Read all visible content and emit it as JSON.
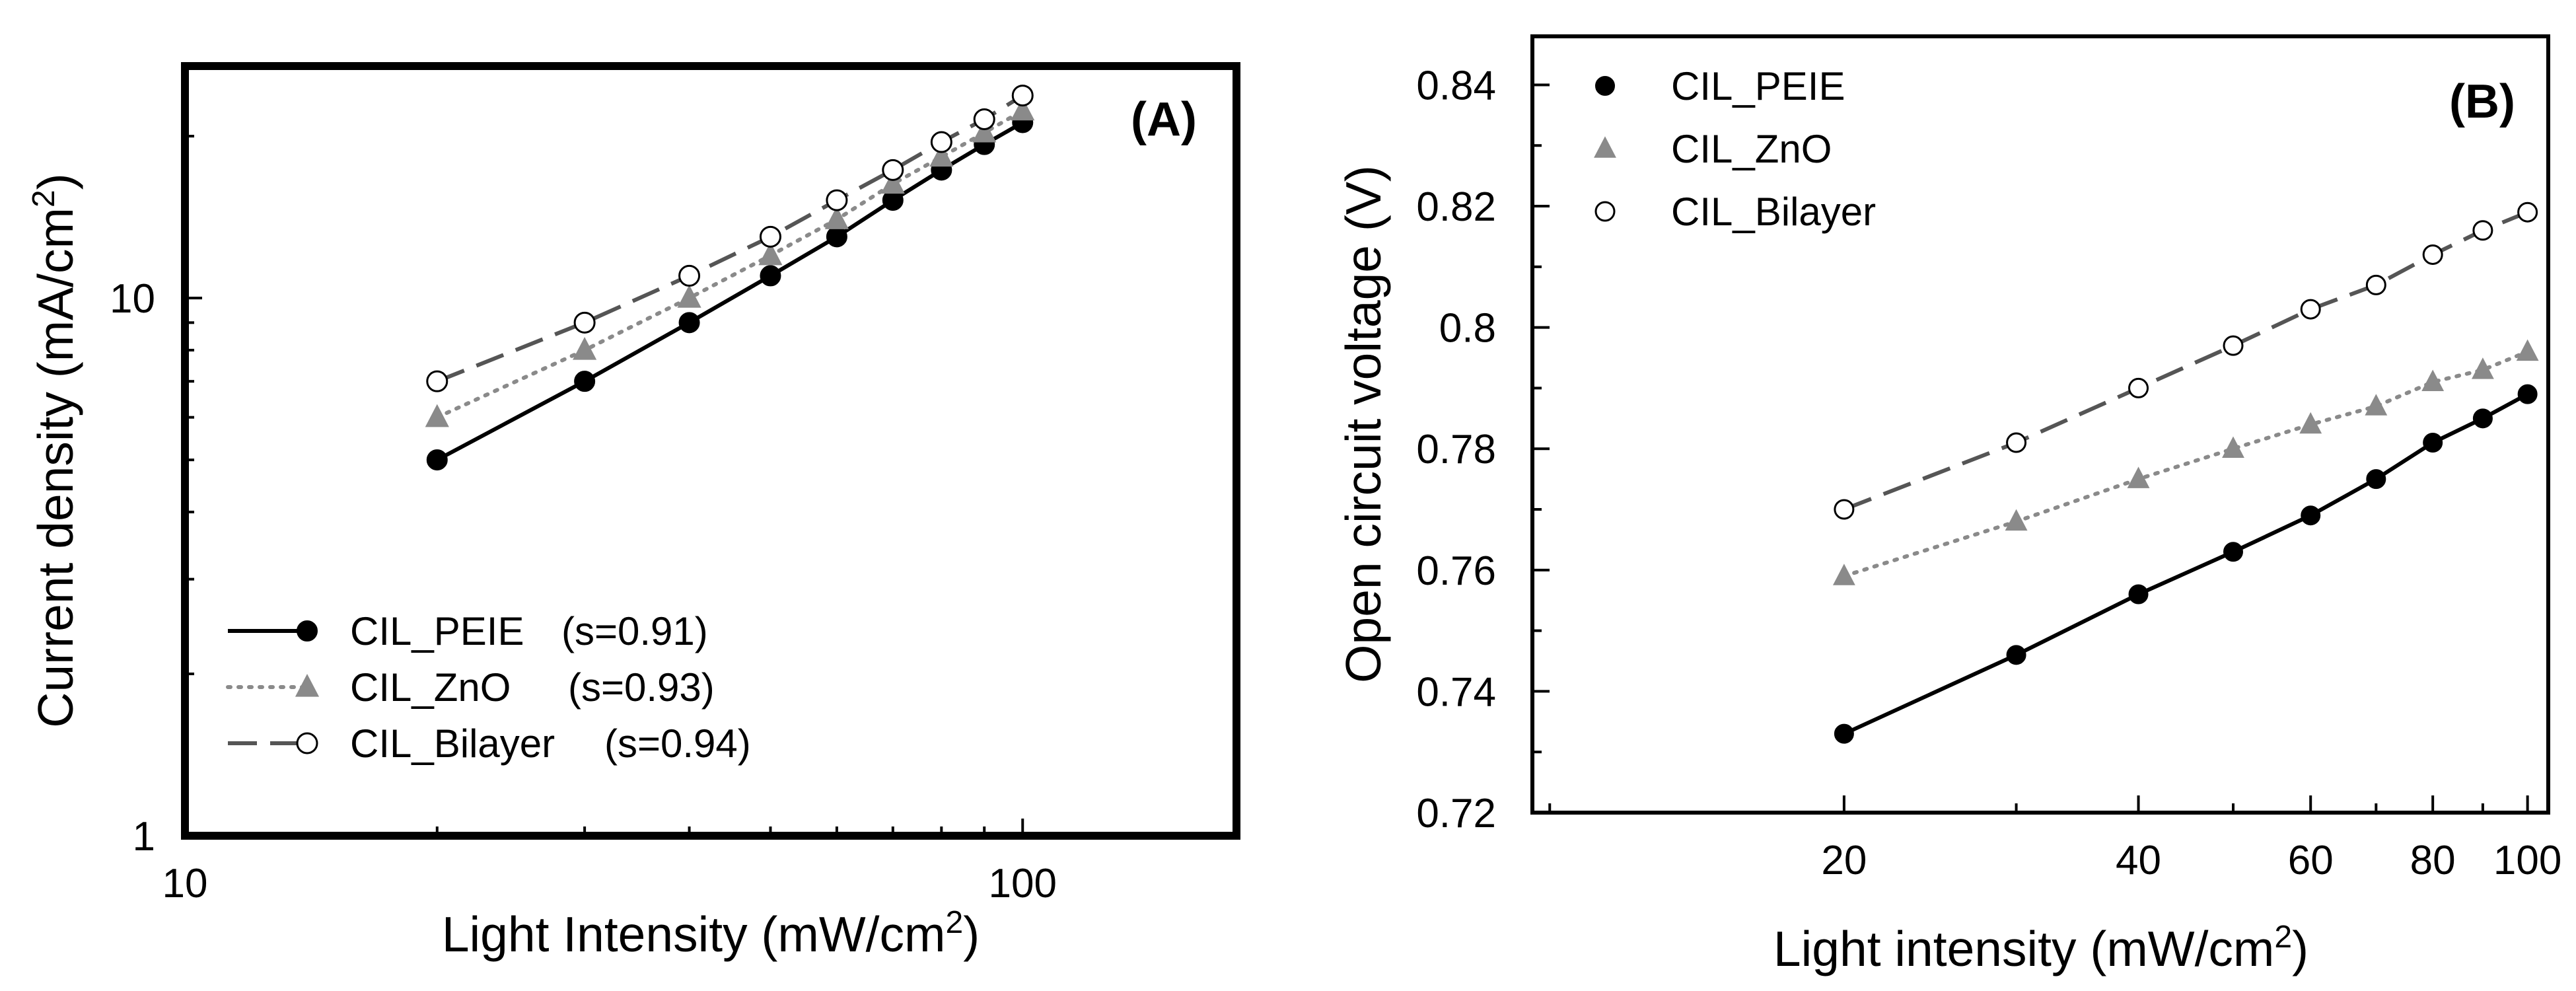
{
  "chart_data": [
    {
      "type": "line",
      "panel_label": "(A)",
      "xscale": "log",
      "yscale": "log",
      "xlabel": "Light Intensity (mW/cm",
      "xlabel_sup": "2",
      "xlabel_end": ")",
      "ylabel": "Current density (mA/cm",
      "ylabel_sup": "2",
      "ylabel_end": ")",
      "xlim": [
        10,
        180
      ],
      "ylim": [
        1,
        27
      ],
      "xticks": [
        10,
        100
      ],
      "xtick_labels": [
        "10",
        "100"
      ],
      "yticks": [
        1,
        10
      ],
      "ytick_labels": [
        "1",
        "10"
      ],
      "legend_position": "bottom-left",
      "series": [
        {
          "name": "CIL_PEIE",
          "fit": "(s=0.91)",
          "style": "solid",
          "marker": "filled-circle",
          "color": "#000000",
          "x": [
            20,
            30,
            40,
            50,
            60,
            70,
            80,
            90,
            100
          ],
          "y": [
            5.0,
            7.0,
            9.0,
            11.0,
            13.0,
            15.2,
            17.3,
            19.3,
            21.2
          ]
        },
        {
          "name": "CIL_ZnO",
          "fit": "(s=0.93)",
          "style": "dotted",
          "marker": "triangle",
          "color": "#8a8a8a",
          "x": [
            20,
            30,
            40,
            50,
            60,
            70,
            80,
            90,
            100
          ],
          "y": [
            6.0,
            8.0,
            10.0,
            12.0,
            14.0,
            16.3,
            18.3,
            20.3,
            22.3
          ]
        },
        {
          "name": "CIL_Bilayer",
          "fit": "(s=0.94)",
          "style": "dashed",
          "marker": "open-circle",
          "color": "#555555",
          "x": [
            20,
            30,
            40,
            50,
            60,
            70,
            80,
            90,
            100
          ],
          "y": [
            7.0,
            9.0,
            11.0,
            13.0,
            15.2,
            17.3,
            19.5,
            21.5,
            23.8
          ]
        }
      ]
    },
    {
      "type": "line",
      "panel_label": "(B)",
      "xscale": "log",
      "yscale": "linear",
      "xlabel": "Light intensity (mW/cm",
      "xlabel_sup": "2",
      "xlabel_end": ")",
      "ylabel": "Open circuit voltage (V)",
      "xlim": [
        9.6,
        105
      ],
      "ylim": [
        0.72,
        0.848
      ],
      "xticks": [
        20,
        40,
        60,
        80,
        100
      ],
      "xtick_labels": [
        "20",
        "40",
        "60",
        "80",
        "100"
      ],
      "yticks": [
        0.72,
        0.74,
        0.76,
        0.78,
        0.8,
        0.82,
        0.84
      ],
      "ytick_labels": [
        "0.72",
        "0.74",
        "0.76",
        "0.78",
        "0.8",
        "0.82",
        "0.84"
      ],
      "legend_position": "top-left",
      "series": [
        {
          "name": "CIL_PEIE",
          "style": "solid",
          "marker": "filled-circle",
          "color": "#000000",
          "x": [
            20,
            30,
            40,
            50,
            60,
            70,
            80,
            90,
            100
          ],
          "y": [
            0.733,
            0.746,
            0.756,
            0.763,
            0.769,
            0.775,
            0.781,
            0.785,
            0.789
          ]
        },
        {
          "name": "CIL_ZnO",
          "style": "dotted",
          "marker": "triangle",
          "color": "#8a8a8a",
          "x": [
            20,
            30,
            40,
            50,
            60,
            70,
            80,
            90,
            100
          ],
          "y": [
            0.759,
            0.768,
            0.775,
            0.78,
            0.784,
            0.787,
            0.791,
            0.793,
            0.796
          ]
        },
        {
          "name": "CIL_Bilayer",
          "style": "dashed",
          "marker": "open-circle",
          "color": "#555555",
          "x": [
            20,
            30,
            40,
            50,
            60,
            70,
            80,
            90,
            100
          ],
          "y": [
            0.77,
            0.781,
            0.79,
            0.797,
            0.803,
            0.807,
            0.812,
            0.816,
            0.819
          ]
        }
      ]
    }
  ]
}
